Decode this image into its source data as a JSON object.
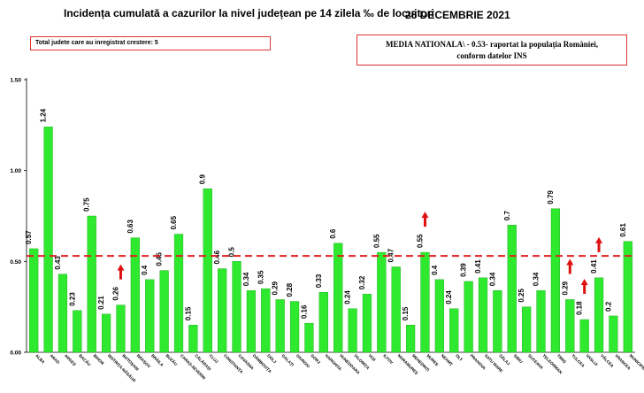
{
  "header": {
    "title": "Incidența cumulată a cazurilor la nivel județean pe 14 zilela ‰ de locuitori",
    "date": "25 DECEMBRIE 2021"
  },
  "info_box": {
    "text": "Total judete care au inregistrat crestere: 5"
  },
  "national_box": {
    "line1": "MEDIA NATIONALA\\  - 0.53-  raportat la populația României,",
    "line2": "conform datelor INS"
  },
  "colors": {
    "bar": "#2ee92e",
    "bar_edge": "#17a317",
    "reference_line": "#e02020",
    "arrow": "#e01010",
    "box_border": "#d33333"
  },
  "chart_data": {
    "type": "bar",
    "title": "",
    "xlabel": "",
    "ylabel": "",
    "ylim": [
      0,
      1.5
    ],
    "yticks": [
      "0.00",
      "0.50",
      "1.00",
      "1.50"
    ],
    "grid": false,
    "reference_line": {
      "value": 0.53,
      "style": "dashed"
    },
    "categories": [
      "ALBA",
      "ARAD",
      "ARGEȘ",
      "BACĂU",
      "BIHOR",
      "BISTRIȚA-NĂSĂUD",
      "BOTOȘANI",
      "BRAȘOV",
      "BRĂILA",
      "BUZĂU",
      "CARAȘ-SEVERIN",
      "CĂLĂRAȘI",
      "CLUJ",
      "CONSTANȚA",
      "COVASNA",
      "DÂMBOVIȚA",
      "DOLJ",
      "GALAȚI",
      "GIURGIU",
      "GORJ",
      "HARGHITA",
      "HUNEDOARA",
      "IALOMIȚA",
      "IAȘI",
      "ILFOV",
      "MARAMUREȘ",
      "MEHEDINȚI",
      "MUREȘ",
      "NEAMȚ",
      "OLT",
      "PRAHOVA",
      "SATU MARE",
      "SĂLAJ",
      "SIBIU",
      "SUCEAVA",
      "TELEORMAN",
      "TIMIȘ",
      "TULCEA",
      "VASLUI",
      "VÂLCEA",
      "VRANCEA",
      "MUNICIPIUL..."
    ],
    "values": [
      0.57,
      1.24,
      0.43,
      0.23,
      0.75,
      0.21,
      0.26,
      0.63,
      0.4,
      0.45,
      0.65,
      0.15,
      0.9,
      0.46,
      0.5,
      0.34,
      0.35,
      0.29,
      0.28,
      0.16,
      0.33,
      0.6,
      0.24,
      0.32,
      0.55,
      0.47,
      0.15,
      0.55,
      0.4,
      0.24,
      0.39,
      0.41,
      0.34,
      0.7,
      0.25,
      0.34,
      0.79,
      0.29,
      0.18,
      0.41,
      0.2,
      0.61
    ],
    "labels": [
      "0.57",
      "1.24",
      "0.43",
      "0.23",
      "0.75",
      "0.21",
      "0.26",
      "0.63",
      "0.4",
      "0.45",
      "0.65",
      "0.15",
      "0.9",
      "0.46",
      "0.5",
      "0.34",
      "0.35",
      "0.29",
      "0.28",
      "0.16",
      "0.33",
      "0.6",
      "0.24",
      "0.32",
      "0.55",
      "0.47",
      "0.15",
      "0.55",
      "0.4",
      "0.24",
      "0.39",
      "0.41",
      "0.34",
      "0.7",
      "0.25",
      "0.34",
      "0.79",
      "0.29",
      "0.18",
      "0.41",
      "0.2",
      "0.61"
    ],
    "increase_markers": [
      "BOTOȘANI",
      "MUREȘ",
      "TULCEA",
      "VASLUI",
      "VÂLCEA"
    ]
  }
}
